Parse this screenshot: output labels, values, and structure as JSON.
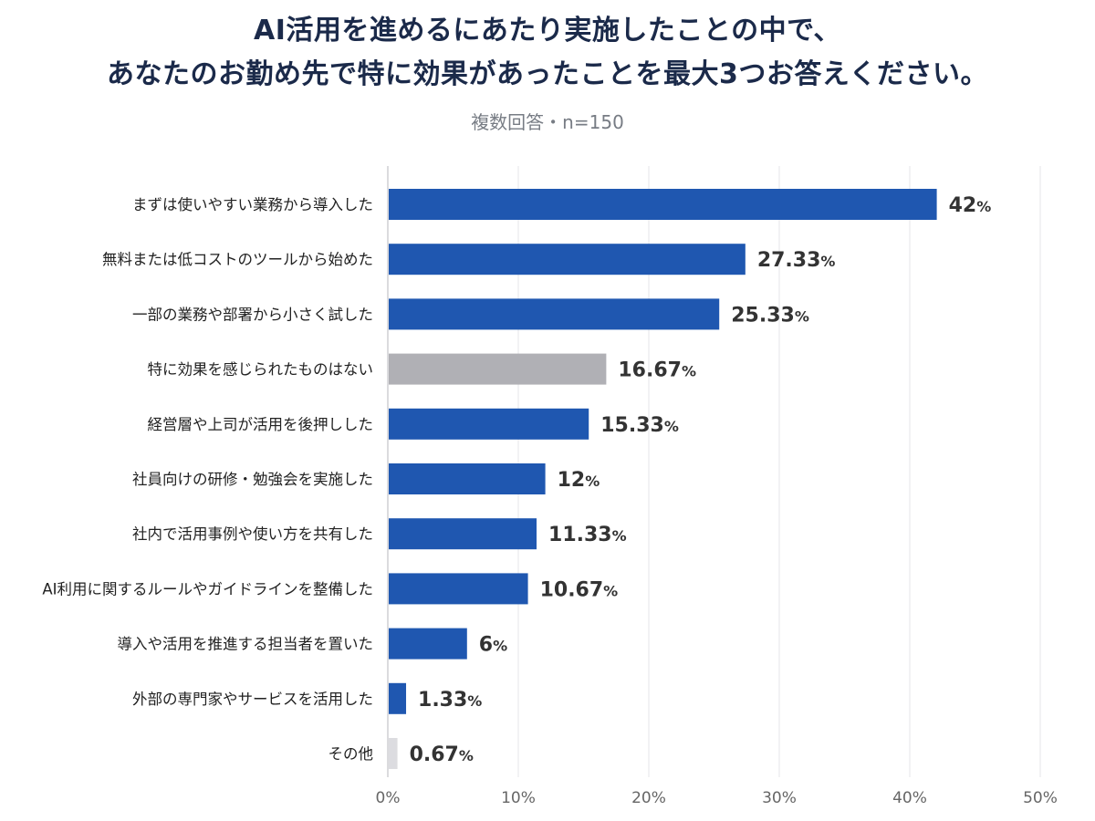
{
  "title_line1": "AI活用を進めるにあたり実施したことの中で、",
  "title_line2": "あなたのお勤め先で特に効果があったことを最大3つお答えください。",
  "subtitle": "複数回答・n=150",
  "colors": {
    "primary": "#1f57b0",
    "gray": "#b0b0b5",
    "light_gray": "#dcdce0",
    "grid": "#e4e4e8",
    "axis": "#666666",
    "label": "#222222",
    "value": "#333333"
  },
  "chart_data": {
    "type": "bar",
    "orientation": "horizontal",
    "categories": [
      "まずは使いやすい業務から導入した",
      "無料または低コストのツールから始めた",
      "一部の業務や部署から小さく試した",
      "特に効果を感じられたものはない",
      "経営層や上司が活用を後押しした",
      "社員向けの研修・勉強会を実施した",
      "社内で活用事例や使い方を共有した",
      "AI利用に関するルールやガイドラインを整備した",
      "導入や活用を推進する担当者を置いた",
      "外部の専門家やサービスを活用した",
      "その他"
    ],
    "values": [
      42,
      27.33,
      25.33,
      16.67,
      15.33,
      12,
      11.33,
      10.67,
      6,
      1.33,
      0.67
    ],
    "value_labels": [
      "42",
      "27.33",
      "25.33",
      "16.67",
      "15.33",
      "12",
      "11.33",
      "10.67",
      "6",
      "1.33",
      "0.67"
    ],
    "value_unit": "%",
    "bar_colors": [
      "primary",
      "primary",
      "primary",
      "gray",
      "primary",
      "primary",
      "primary",
      "primary",
      "primary",
      "primary",
      "light_gray"
    ],
    "xlim": [
      0,
      50
    ],
    "xticks": [
      "0%",
      "10%",
      "20%",
      "30%",
      "40%",
      "50%"
    ],
    "grid": true,
    "title": "AI活用を進めるにあたり実施したことの中で、あなたのお勤め先で特に効果があったことを最大3つお答えください。",
    "subtitle": "複数回答・n=150"
  }
}
